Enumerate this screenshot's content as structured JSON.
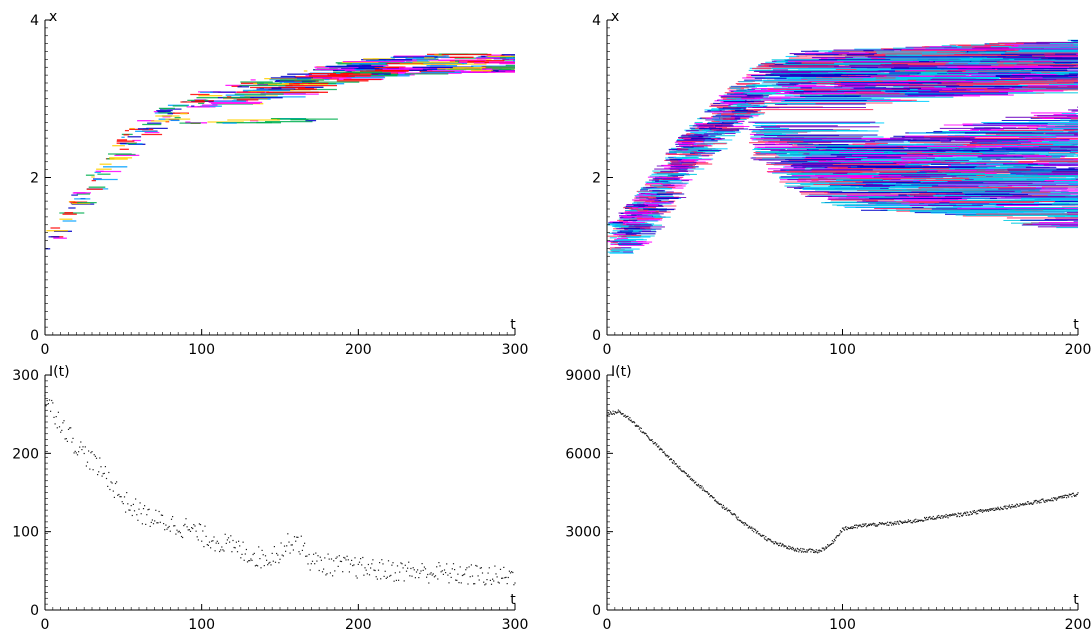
{
  "chart_data": [
    {
      "type": "heatmap",
      "xlabel": "t",
      "ylabel": "x",
      "xlim": [
        0,
        300
      ],
      "ylim": [
        0,
        4
      ],
      "xticks": [
        0,
        100,
        200,
        300
      ],
      "yticks": [
        0,
        2,
        4
      ],
      "trend": [
        [
          0,
          1.2
        ],
        [
          25,
          1.9
        ],
        [
          50,
          2.5
        ],
        [
          75,
          2.8
        ],
        [
          100,
          3.0
        ],
        [
          150,
          3.2
        ],
        [
          200,
          3.4
        ],
        [
          250,
          3.45
        ],
        [
          300,
          3.45
        ]
      ],
      "branch": [
        [
          60,
          2.7
        ],
        [
          100,
          2.72
        ],
        [
          170,
          2.72
        ]
      ],
      "colors": [
        "#0000c8",
        "#00a0ff",
        "#ff00ff",
        "#ffd000",
        "#00b050",
        "#ff0000"
      ]
    },
    {
      "type": "heatmap",
      "xlabel": "t",
      "ylabel": "x",
      "xlim": [
        0,
        200
      ],
      "ylim": [
        0,
        4
      ],
      "xticks": [
        0,
        100,
        200
      ],
      "yticks": [
        0,
        2,
        4
      ],
      "trend": [
        [
          0,
          1.2
        ],
        [
          10,
          1.5
        ],
        [
          20,
          1.9
        ],
        [
          30,
          2.3
        ],
        [
          40,
          2.6
        ],
        [
          50,
          2.9
        ],
        [
          60,
          3.1
        ],
        [
          80,
          3.3
        ],
        [
          120,
          3.35
        ],
        [
          160,
          3.4
        ],
        [
          200,
          3.45
        ]
      ],
      "lower_band": [
        [
          60,
          2.5
        ],
        [
          80,
          2.1
        ],
        [
          100,
          2.0
        ],
        [
          140,
          2.1
        ],
        [
          200,
          2.1
        ]
      ],
      "colors": [
        "#00c8e0",
        "#0000c8",
        "#6a00c0",
        "#ff00ff",
        "#ff3060",
        "#00d0ff"
      ]
    },
    {
      "type": "scatter",
      "xlabel": "t",
      "ylabel": "I(t)",
      "xlim": [
        0,
        300
      ],
      "ylim": [
        0,
        300
      ],
      "xticks": [
        0,
        100,
        200,
        300
      ],
      "yticks": [
        0,
        100,
        200,
        300
      ],
      "series": [
        {
          "x": [
            0,
            10,
            20,
            30,
            40,
            50,
            60,
            70,
            80,
            90,
            100,
            110,
            120,
            130,
            140,
            150,
            160,
            170,
            180,
            190,
            200,
            210,
            220,
            230,
            240,
            250,
            260,
            270,
            280,
            290,
            300
          ],
          "values": [
            270,
            240,
            210,
            190,
            170,
            140,
            125,
            115,
            110,
            105,
            95,
            88,
            80,
            72,
            65,
            75,
            92,
            62,
            58,
            56,
            54,
            52,
            50,
            50,
            48,
            48,
            46,
            45,
            44,
            42,
            45
          ]
        }
      ]
    },
    {
      "type": "line",
      "xlabel": "t",
      "ylabel": "I(t)",
      "xlim": [
        0,
        200
      ],
      "ylim": [
        0,
        9000
      ],
      "xticks": [
        0,
        100,
        200
      ],
      "yticks": [
        0,
        3000,
        6000,
        9000
      ],
      "series": [
        {
          "x": [
            0,
            5,
            10,
            20,
            30,
            40,
            50,
            60,
            70,
            80,
            90,
            95,
            100,
            110,
            120,
            130,
            140,
            150,
            160,
            170,
            180,
            190,
            200
          ],
          "values": [
            7500,
            7600,
            7300,
            6400,
            5500,
            4700,
            3900,
            3200,
            2600,
            2300,
            2250,
            2500,
            3100,
            3250,
            3300,
            3400,
            3550,
            3650,
            3800,
            3950,
            4100,
            4250,
            4450
          ]
        }
      ]
    }
  ]
}
